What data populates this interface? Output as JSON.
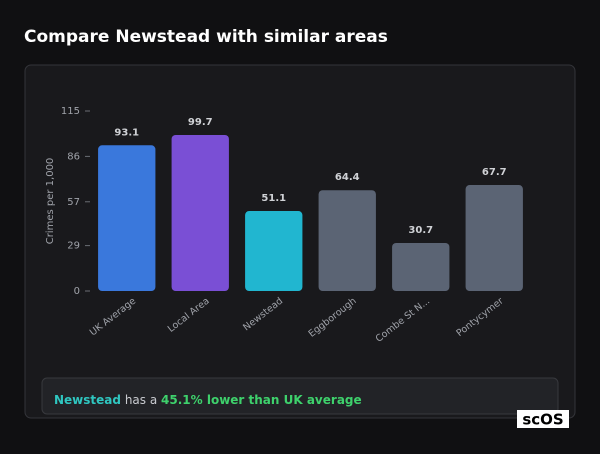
{
  "header": {
    "title": "Compare Newstead with similar areas"
  },
  "chart_data": {
    "type": "bar",
    "y_label": "Crimes per 1,000",
    "categories": [
      "UK Average",
      "Local Area",
      "Newstead",
      "Eggborough",
      "Combe St N...",
      "Pontycymer"
    ],
    "values": [
      93.1,
      99.7,
      51.1,
      64.4,
      30.7,
      67.7
    ],
    "colors": [
      "#3a78dc",
      "#7a4fd5",
      "#21b6d0",
      "#5b6474",
      "#5b6474",
      "#5b6474"
    ],
    "ylim": [
      0,
      115
    ],
    "yticks": [
      0,
      29,
      57,
      86,
      115
    ],
    "grid": false
  },
  "summary": {
    "area": "Newstead",
    "text": "has a",
    "highlight": "45.1% lower than UK average"
  },
  "logo": "scOS"
}
